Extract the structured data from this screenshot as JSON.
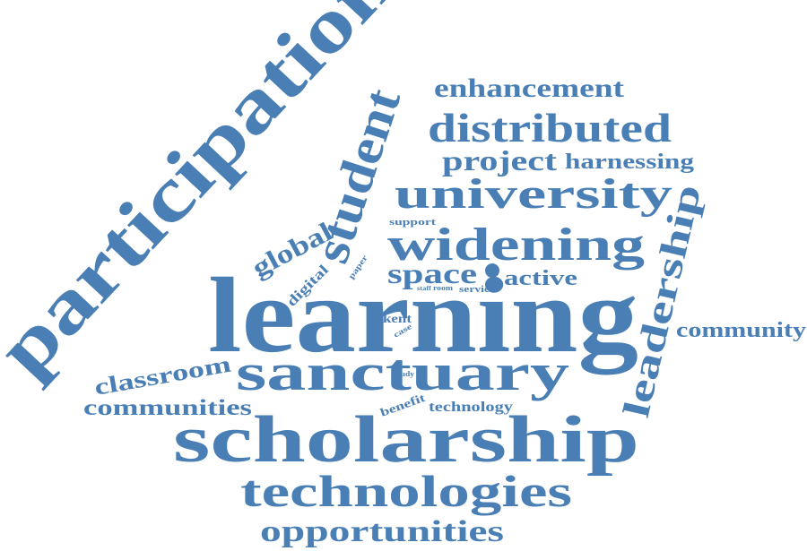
{
  "color": "#4a7fb5",
  "words": [
    {
      "id": "participation",
      "text": "participation"
    },
    {
      "id": "learning",
      "text": "learning"
    },
    {
      "id": "scholarship",
      "text": "scholarship"
    },
    {
      "id": "sanctuary",
      "text": "sanctuary"
    },
    {
      "id": "technologies",
      "text": "technologies"
    },
    {
      "id": "widening",
      "text": "widening"
    },
    {
      "id": "university",
      "text": "university"
    },
    {
      "id": "distributed",
      "text": "distributed"
    },
    {
      "id": "student",
      "text": "student"
    },
    {
      "id": "leadership",
      "text": "leadership"
    },
    {
      "id": "opportunities",
      "text": "opportunities"
    },
    {
      "id": "enhancement",
      "text": "enhancement"
    },
    {
      "id": "project",
      "text": "project"
    },
    {
      "id": "harnessing",
      "text": "harnessing"
    },
    {
      "id": "space",
      "text": "space"
    },
    {
      "id": "active",
      "text": "active"
    },
    {
      "id": "global",
      "text": "global"
    },
    {
      "id": "classroom",
      "text": "classroom"
    },
    {
      "id": "communities",
      "text": "communities"
    },
    {
      "id": "community",
      "text": "community"
    },
    {
      "id": "digital",
      "text": "digital"
    },
    {
      "id": "kent",
      "text": "kent"
    },
    {
      "id": "support",
      "text": "support"
    },
    {
      "id": "paper",
      "text": "paper"
    },
    {
      "id": "staff",
      "text": "staff"
    },
    {
      "id": "room",
      "text": "room"
    },
    {
      "id": "service",
      "text": "service"
    },
    {
      "id": "case",
      "text": "case"
    },
    {
      "id": "study",
      "text": "study"
    },
    {
      "id": "benefit",
      "text": "benefit"
    },
    {
      "id": "technology",
      "text": "technology"
    }
  ]
}
